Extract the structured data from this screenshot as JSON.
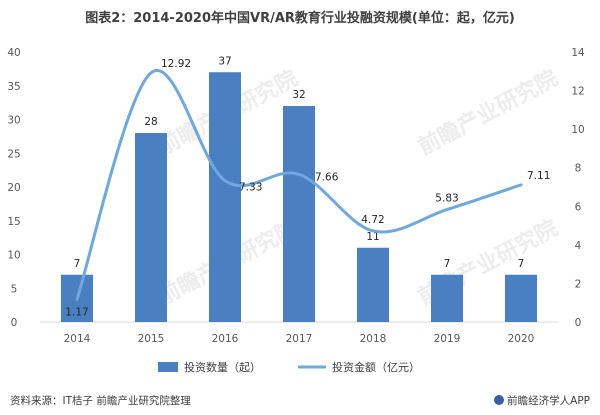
{
  "title": "图表2：2014-2020年中国VR/AR教育行业投融资规模(单位：起，亿元)",
  "footer": {
    "source": "资料来源：IT桔子 前瞻产业研究院整理",
    "brand": "前瞻经济学人APP"
  },
  "watermark": "前瞻产业研究院",
  "chart_data": {
    "type": "bar+line",
    "categories": [
      "2014",
      "2015",
      "2016",
      "2017",
      "2018",
      "2019",
      "2020"
    ],
    "series": [
      {
        "name": "投资数量（起）",
        "type": "bar",
        "axis": "left",
        "values": [
          7,
          28,
          37,
          32,
          11,
          7,
          7
        ],
        "labels": [
          "7",
          "28",
          "37",
          "32",
          "11",
          "7",
          "7"
        ],
        "color": "#4a7fc1"
      },
      {
        "name": "投资金额（亿元）",
        "type": "line",
        "axis": "right",
        "smooth": true,
        "values": [
          1.17,
          12.92,
          7.33,
          7.66,
          4.72,
          5.83,
          7.11
        ],
        "labels": [
          "1.17",
          "12.92",
          "7.33",
          "7.66",
          "4.72",
          "5.83",
          "7.11"
        ],
        "color": "#6fa8dc"
      }
    ],
    "y_left": {
      "min": 0,
      "max": 40,
      "ticks": [
        "0",
        "5",
        "10",
        "15",
        "20",
        "25",
        "30",
        "35",
        "40"
      ]
    },
    "y_right": {
      "min": 0,
      "max": 14,
      "ticks": [
        "0",
        "2",
        "4",
        "6",
        "8",
        "10",
        "12",
        "14"
      ]
    },
    "grid": false,
    "legend_position": "bottom"
  }
}
